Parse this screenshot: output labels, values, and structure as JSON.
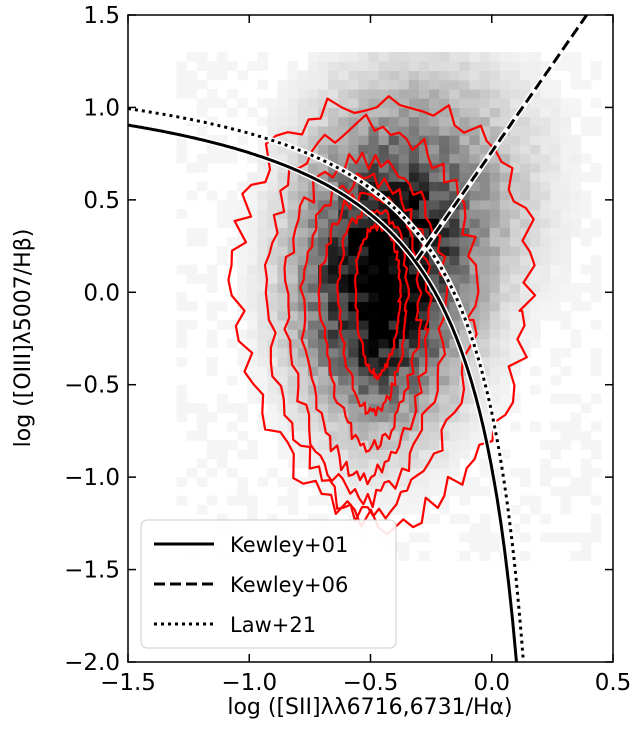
{
  "chart_data": {
    "type": "scatter",
    "title": "",
    "xlabel": "log  ([SII]λλ6716,6731/Hα)",
    "ylabel": "log  ([OIII]λ5007/Hβ)",
    "xlim": [
      -1.5,
      0.5
    ],
    "ylim": [
      -2.0,
      1.5
    ],
    "xticks": [
      -1.5,
      -1.0,
      -0.5,
      0.0,
      0.5
    ],
    "yticks": [
      1.5,
      1.0,
      0.5,
      0.0,
      -0.5,
      -1.0,
      -1.5,
      -2.0
    ],
    "xtick_labels": [
      "−1.5",
      "−1.0",
      "−0.5",
      "0.0",
      "0.5"
    ],
    "ytick_labels": [
      "1.5",
      "1.0",
      "0.5",
      "0.0",
      "−0.5",
      "−1.0",
      "−1.5",
      "−2.0"
    ],
    "grid": false,
    "legend_position": "lower-left",
    "density": {
      "kind": "2d-histogram",
      "colormap": "greys",
      "peak": {
        "x": -0.48,
        "y": -0.05
      },
      "spread": {
        "x": 0.22,
        "y": 0.45
      }
    },
    "contours": {
      "color": "#ff0000",
      "rings": [
        {
          "level": 1,
          "center": {
            "x": -0.47,
            "y": -0.05
          },
          "rx": 0.09,
          "ry": 0.4
        },
        {
          "level": 2,
          "center": {
            "x": -0.49,
            "y": -0.1
          },
          "rx": 0.14,
          "ry": 0.55
        },
        {
          "level": 3,
          "center": {
            "x": -0.5,
            "y": -0.15
          },
          "rx": 0.2,
          "ry": 0.68
        },
        {
          "level": 4,
          "center": {
            "x": -0.52,
            "y": -0.2
          },
          "rx": 0.26,
          "ry": 0.8
        },
        {
          "level": 5,
          "center": {
            "x": -0.52,
            "y": -0.2
          },
          "rx": 0.32,
          "ry": 0.92
        },
        {
          "level": 6,
          "center": {
            "x": -0.5,
            "y": -0.15
          },
          "rx": 0.42,
          "ry": 1.05
        },
        {
          "level": 7,
          "center": {
            "x": -0.45,
            "y": -0.1
          },
          "rx": 0.6,
          "ry": 1.15
        }
      ]
    },
    "series": [
      {
        "name": "Kewley+01",
        "style": "solid",
        "color": "#000000",
        "equation": "y = 0.72/(x - 0.32) + 1.30"
      },
      {
        "name": "Kewley+06",
        "style": "dashed",
        "color": "#000000",
        "equation": "y = 1.89x + 0.76"
      },
      {
        "name": "Law+21",
        "style": "dotted",
        "color": "#000000",
        "equation": "y = 0.648/(x - 0.324) + 1.349"
      }
    ]
  }
}
